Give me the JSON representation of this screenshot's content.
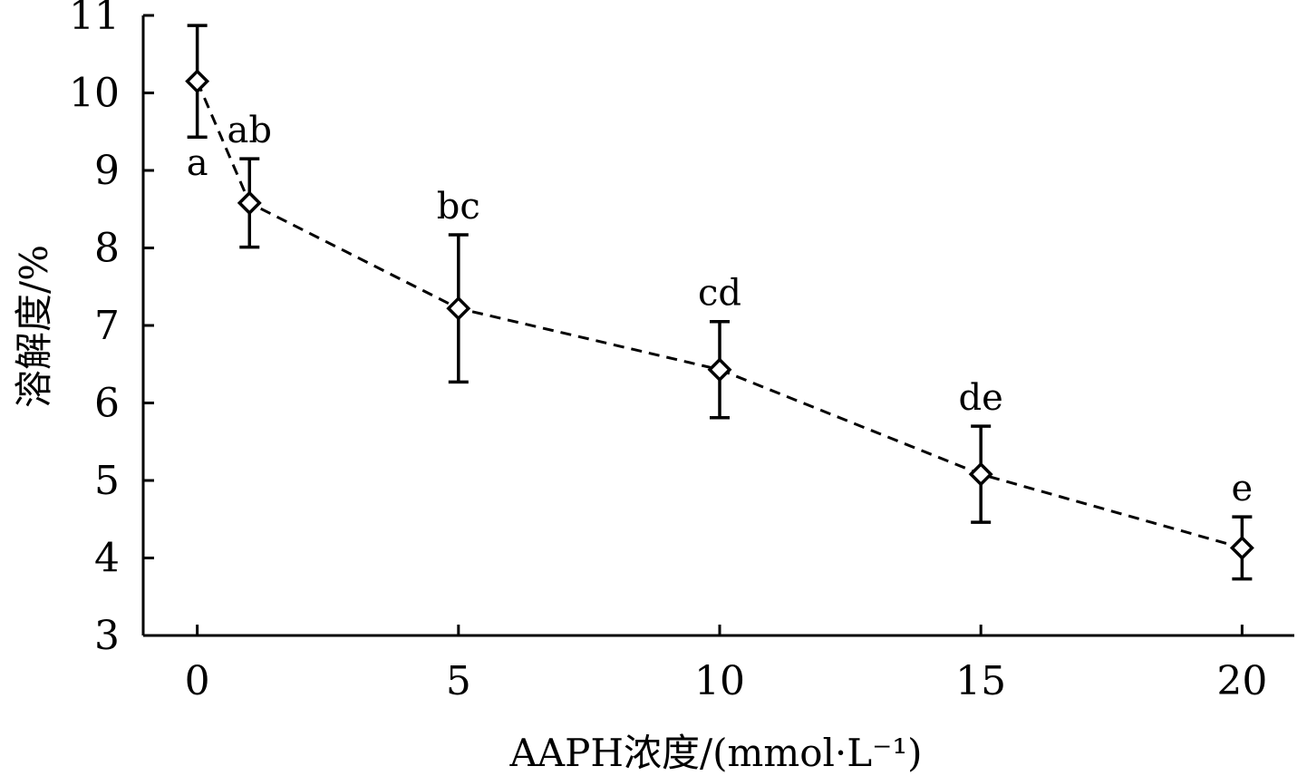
{
  "chart_data": {
    "type": "line",
    "x": [
      0,
      1,
      5,
      10,
      15,
      20
    ],
    "series": [
      {
        "values": [
          10.15,
          8.58,
          7.22,
          6.43,
          5.08,
          4.13
        ],
        "errors": [
          0.72,
          0.57,
          0.95,
          0.62,
          0.62,
          0.4
        ],
        "labels": [
          "a",
          "ab",
          "bc",
          "cd",
          "de",
          "e"
        ],
        "line_style": "dashed",
        "marker": "diamond-open"
      }
    ],
    "xlabel": "AAPH浓度/(mmol·L⁻¹)",
    "ylabel": "溶解度/%",
    "xlim": [
      -1,
      21
    ],
    "ylim": [
      3,
      11
    ],
    "xticks": [
      0,
      5,
      10,
      15,
      20
    ],
    "yticks": [
      3,
      4,
      5,
      6,
      7,
      8,
      9,
      10,
      11
    ],
    "grid": false
  }
}
